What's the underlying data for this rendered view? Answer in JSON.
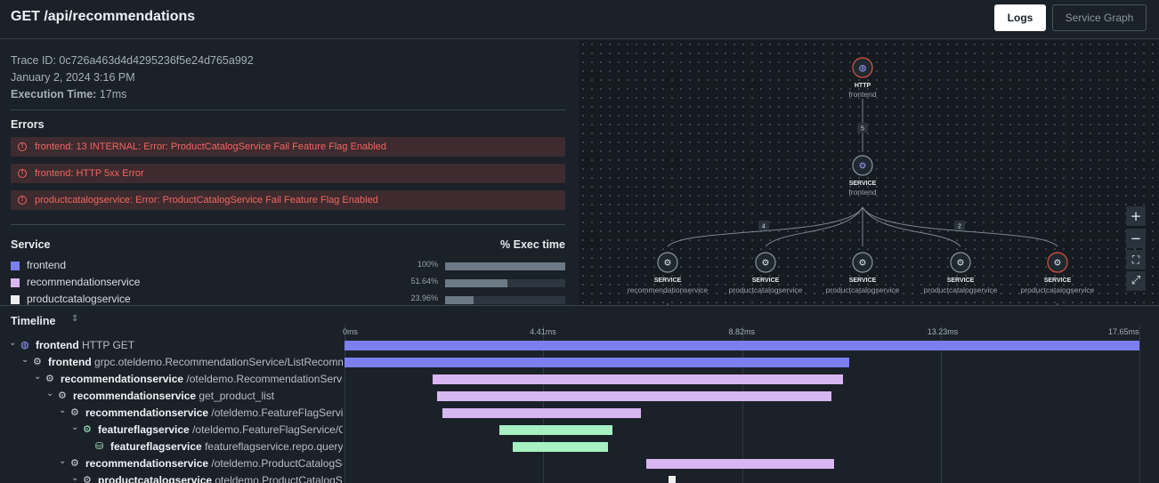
{
  "header": {
    "title": "GET /api/recommendations",
    "logs_label": "Logs",
    "graph_label": "Service Graph"
  },
  "trace": {
    "id_text": "Trace ID: 0c726a463d4d4295236f5e24d765a992",
    "date": "January 2, 2024 3:16 PM",
    "exec_label": "Execution Time:",
    "exec_value": "17ms"
  },
  "errors": {
    "heading": "Errors",
    "items": [
      "frontend: 13 INTERNAL: Error: ProductCatalogService Fail Feature Flag Enabled",
      "frontend: HTTP 5xx Error",
      "productcatalogservice: Error: ProductCatalogService Fail Feature Flag Enabled"
    ]
  },
  "services": {
    "heading": "Service",
    "exec_heading": "% Exec time",
    "items": [
      {
        "name": "frontend",
        "pct": "100%",
        "value": 100,
        "color": "#7b7ff0"
      },
      {
        "name": "recommendationservice",
        "pct": "51.64%",
        "value": 51.64,
        "color": "#d8b6f2"
      },
      {
        "name": "productcatalogservice",
        "pct": "23.96%",
        "value": 23.96,
        "color": "#eeeeee"
      }
    ]
  },
  "graph": {
    "nodes": [
      {
        "type": "HTTP",
        "name": "frontend",
        "status": "error"
      },
      {
        "type": "SERVICE",
        "name": "frontend",
        "status": "ok"
      },
      {
        "type": "SERVICE",
        "name": "recommendationservice",
        "status": "ok"
      },
      {
        "type": "SERVICE",
        "name": "productcatalogservice",
        "status": "ok"
      },
      {
        "type": "SERVICE",
        "name": "productcatalogservice",
        "status": "ok"
      },
      {
        "type": "SERVICE",
        "name": "productcatalogservice",
        "status": "ok"
      },
      {
        "type": "SERVICE",
        "name": "productcatalogservice",
        "status": "error"
      }
    ],
    "edge_labels": [
      "5",
      "4",
      "2"
    ],
    "zoom_in": "+",
    "zoom_out": "−",
    "fit": "⛶",
    "expand": "⤢"
  },
  "timeline": {
    "label": "Timeline",
    "sort_icon": "⇕",
    "ticks": [
      "0ms",
      "4.41ms",
      "8.82ms",
      "13.23ms",
      "17.65ms"
    ],
    "total_ms": 17.65,
    "rows": [
      {
        "depth": 0,
        "icon": "globe-icon",
        "service": "frontend",
        "op": "HTTP GET",
        "start_ms": 0,
        "end_ms": 17.65,
        "color": "#7b7ff0"
      },
      {
        "depth": 1,
        "icon": "gear-icon",
        "service": "frontend",
        "op": "grpc.oteldemo.RecommendationService/ListRecommendations",
        "start_ms": 0,
        "end_ms": 11.2,
        "color": "#7b7ff0"
      },
      {
        "depth": 2,
        "icon": "gear-icon",
        "service": "recommendationservice",
        "op": "/oteldemo.RecommendationService/ListRecommendations",
        "start_ms": 1.95,
        "end_ms": 11.07,
        "color": "#d8b6f2"
      },
      {
        "depth": 3,
        "icon": "gear-icon",
        "service": "recommendationservice",
        "op": "get_product_list",
        "start_ms": 2.05,
        "end_ms": 10.81,
        "color": "#d8b6f2"
      },
      {
        "depth": 4,
        "icon": "gear-icon",
        "service": "recommendationservice",
        "op": "/oteldemo.FeatureFlagService/GetFlag",
        "start_ms": 2.17,
        "end_ms": 6.59,
        "color": "#d8b6f2"
      },
      {
        "depth": 5,
        "icon": "gear-icon",
        "service": "featureflagservice",
        "op": "/oteldemo.FeatureFlagService/GetFlag",
        "start_ms": 3.43,
        "end_ms": 5.95,
        "color": "#a6f0c2"
      },
      {
        "depth": 6,
        "icon": "database-icon",
        "service": "featureflagservice",
        "op": "featureflagservice.repo.query:featureflags",
        "start_ms": 3.73,
        "end_ms": 5.86,
        "color": "#a6f0c2"
      },
      {
        "depth": 4,
        "icon": "gear-icon",
        "service": "recommendationservice",
        "op": "/oteldemo.ProductCatalogService/ListProducts",
        "start_ms": 6.71,
        "end_ms": 10.87,
        "color": "#d8b6f2"
      },
      {
        "depth": 5,
        "icon": "gear-icon",
        "service": "productcatalogservice",
        "op": "oteldemo.ProductCatalogService/ListProducts",
        "start_ms": 7.2,
        "end_ms": 7.36,
        "color": "#eeeeee"
      }
    ]
  }
}
